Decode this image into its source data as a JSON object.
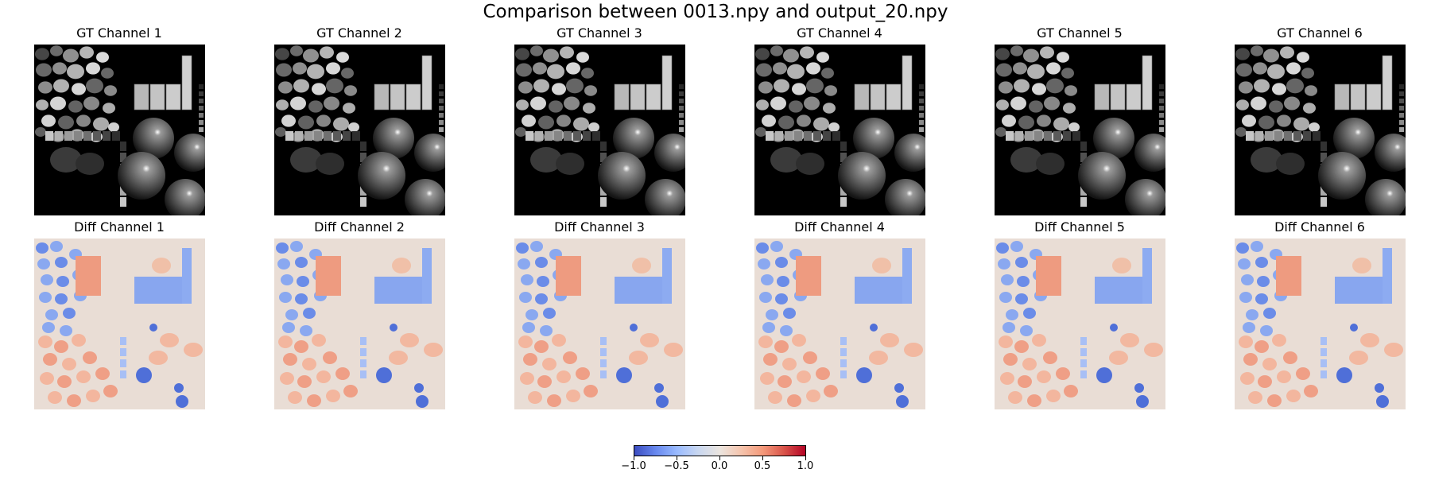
{
  "figure": {
    "title": "Comparison between 0013.npy and output_20.npy"
  },
  "gt_titles": [
    "GT Channel 1",
    "GT Channel 2",
    "GT Channel 3",
    "GT Channel 4",
    "GT Channel 5",
    "GT Channel 6"
  ],
  "diff_titles": [
    "Diff Channel 1",
    "Diff Channel 2",
    "Diff Channel 3",
    "Diff Channel 4",
    "Diff Channel 5",
    "Diff Channel 6"
  ],
  "colorbar": {
    "ticks": [
      "−1.0",
      "−0.5",
      "0.0",
      "0.5",
      "1.0"
    ]
  },
  "colors": {
    "cmap_low": "#3b4cc0",
    "cmap_mid": "#ebe5df",
    "cmap_high": "#b40426",
    "gt_background": "#000000"
  },
  "chart_data": {
    "type": "heatmap",
    "title": "Comparison between 0013.npy and output_20.npy",
    "panels_top": [
      "GT Channel 1",
      "GT Channel 2",
      "GT Channel 3",
      "GT Channel 4",
      "GT Channel 5",
      "GT Channel 6"
    ],
    "panels_bottom": [
      "Diff Channel 1",
      "Diff Channel 2",
      "Diff Channel 3",
      "Diff Channel 4",
      "Diff Channel 5",
      "Diff Channel 6"
    ],
    "top_colormap": "gray",
    "bottom_colormap": "coolwarm",
    "colorbar_range": [
      -1.0,
      1.0
    ],
    "colorbar_ticks": [
      -1.0,
      -0.5,
      0.0,
      0.5,
      1.0
    ],
    "colorbar_position": "bottom-center",
    "grid": false
  }
}
